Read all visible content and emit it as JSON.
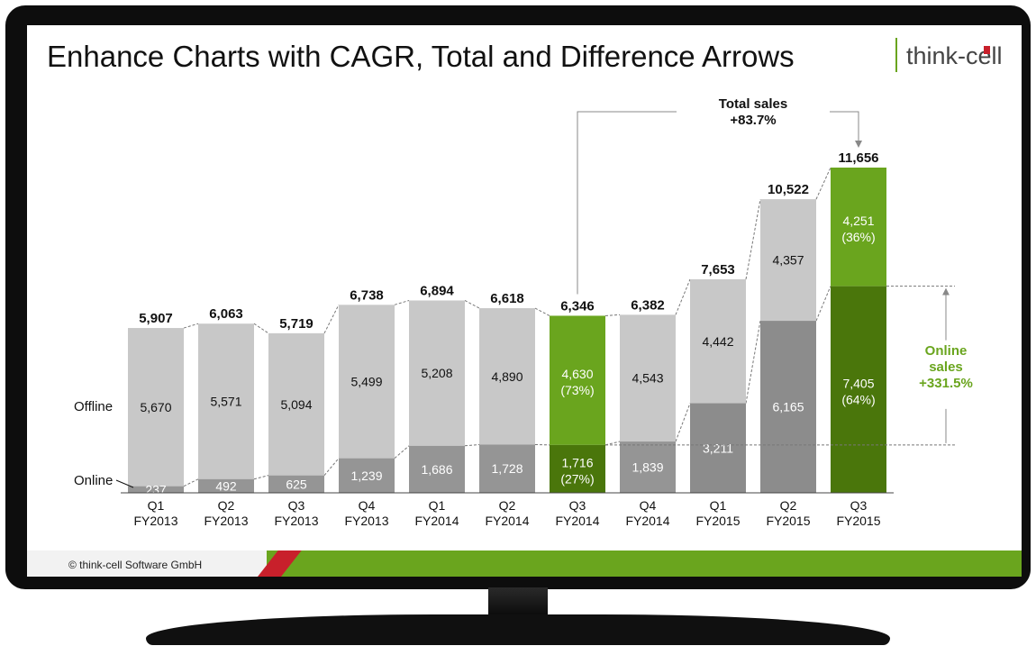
{
  "title": "Enhance Charts with CAGR, Total and Difference Arrows",
  "brand": {
    "name": "think-cell",
    "green": "#6aa51e",
    "dark_green": "#4a760b",
    "red": "#c8202b"
  },
  "footer": {
    "copyright": "© think-cell Software GmbH"
  },
  "chart_data": {
    "type": "bar",
    "stacked": true,
    "categories": [
      {
        "q": "Q1",
        "fy": "FY2013"
      },
      {
        "q": "Q2",
        "fy": "FY2013"
      },
      {
        "q": "Q3",
        "fy": "FY2013"
      },
      {
        "q": "Q4",
        "fy": "FY2013"
      },
      {
        "q": "Q1",
        "fy": "FY2014"
      },
      {
        "q": "Q2",
        "fy": "FY2014"
      },
      {
        "q": "Q3",
        "fy": "FY2014"
      },
      {
        "q": "Q4",
        "fy": "FY2014"
      },
      {
        "q": "Q1",
        "fy": "FY2015"
      },
      {
        "q": "Q2",
        "fy": "FY2015"
      },
      {
        "q": "Q3",
        "fy": "FY2015"
      }
    ],
    "series": [
      {
        "name": "Online",
        "values": [
          237,
          492,
          625,
          1239,
          1686,
          1728,
          1716,
          1839,
          3211,
          6165,
          7405
        ]
      },
      {
        "name": "Offline",
        "values": [
          5670,
          5571,
          5094,
          5499,
          5208,
          4890,
          4630,
          4543,
          4442,
          4357,
          4251
        ]
      }
    ],
    "totals": [
      "5,907",
      "6,063",
      "5,719",
      "6,738",
      "6,894",
      "6,618",
      "6,346",
      "6,382",
      "7,653",
      "10,522",
      "11,656"
    ],
    "segment_labels": {
      "online": [
        "237",
        "492",
        "625",
        "1,239",
        "1,686",
        "1,728",
        "1,716",
        "1,839",
        "3,211",
        "6,165",
        "7,405"
      ],
      "offline": [
        "5,670",
        "5,571",
        "5,094",
        "5,499",
        "5,208",
        "4,890",
        "4,630",
        "4,543",
        "4,442",
        "4,357",
        "4,251"
      ]
    },
    "shares": {
      "online": [
        "",
        "",
        "",
        "",
        "",
        "",
        "(27%)",
        "",
        "",
        "",
        "(64%)"
      ],
      "offline": [
        "",
        "",
        "",
        "",
        "",
        "",
        "(73%)",
        "",
        "",
        "",
        "(36%)"
      ]
    },
    "highlighted": [
      6,
      10
    ],
    "ylim": [
      0,
      11656
    ],
    "legend": {
      "offline": "Offline",
      "online": "Online"
    },
    "annotations": {
      "total_arrow": {
        "from_index": 6,
        "to_index": 10,
        "label_line1": "Total sales",
        "label_line2": "+83.7%"
      },
      "difference_arrow": {
        "from_index": 6,
        "to_index": 10,
        "series": "Online",
        "label_line1": "Online",
        "label_line2": "sales",
        "label_line3": "+331.5%"
      }
    }
  }
}
